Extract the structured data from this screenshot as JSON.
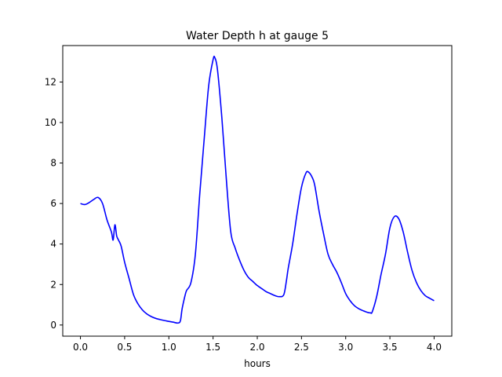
{
  "chart_data": {
    "type": "line",
    "title": "Water Depth h at gauge 5",
    "xlabel": "hours",
    "ylabel": "",
    "xlim": [
      -0.2,
      4.2
    ],
    "ylim": [
      -0.55,
      13.8
    ],
    "xticks": [
      0.0,
      0.5,
      1.0,
      1.5,
      2.0,
      2.5,
      3.0,
      3.5,
      4.0
    ],
    "xtick_labels": [
      "0.0",
      "0.5",
      "1.0",
      "1.5",
      "2.0",
      "2.5",
      "3.0",
      "3.5",
      "4.0"
    ],
    "yticks": [
      0,
      2,
      4,
      6,
      8,
      10,
      12
    ],
    "ytick_labels": [
      "0",
      "2",
      "4",
      "6",
      "8",
      "10",
      "12"
    ],
    "grid": false,
    "series": [
      {
        "color": "#0000ff",
        "x": [
          0.0,
          0.05,
          0.1,
          0.15,
          0.2,
          0.25,
          0.3,
          0.35,
          0.37,
          0.39,
          0.41,
          0.43,
          0.46,
          0.5,
          0.55,
          0.6,
          0.65,
          0.7,
          0.75,
          0.8,
          0.85,
          0.9,
          0.95,
          1.0,
          1.05,
          1.1,
          1.13,
          1.15,
          1.18,
          1.2,
          1.25,
          1.3,
          1.35,
          1.4,
          1.45,
          1.5,
          1.52,
          1.55,
          1.6,
          1.65,
          1.7,
          1.75,
          1.8,
          1.85,
          1.9,
          1.95,
          2.0,
          2.05,
          2.1,
          2.15,
          2.2,
          2.25,
          2.3,
          2.33,
          2.35,
          2.4,
          2.45,
          2.5,
          2.55,
          2.58,
          2.62,
          2.65,
          2.7,
          2.75,
          2.8,
          2.85,
          2.9,
          2.95,
          3.0,
          3.05,
          3.1,
          3.15,
          3.2,
          3.25,
          3.28,
          3.3,
          3.35,
          3.4,
          3.45,
          3.5,
          3.55,
          3.6,
          3.65,
          3.7,
          3.75,
          3.8,
          3.85,
          3.9,
          3.95,
          4.0
        ],
        "y": [
          6.0,
          5.95,
          6.05,
          6.2,
          6.3,
          6.0,
          5.2,
          4.6,
          4.2,
          4.95,
          4.4,
          4.2,
          3.9,
          3.1,
          2.3,
          1.5,
          1.05,
          0.75,
          0.55,
          0.42,
          0.33,
          0.27,
          0.22,
          0.18,
          0.14,
          0.1,
          0.2,
          0.8,
          1.4,
          1.7,
          2.1,
          3.5,
          6.5,
          9.2,
          11.8,
          13.1,
          13.2,
          12.6,
          10.2,
          7.2,
          4.6,
          3.8,
          3.2,
          2.7,
          2.35,
          2.15,
          1.95,
          1.8,
          1.65,
          1.55,
          1.45,
          1.4,
          1.5,
          2.2,
          2.8,
          4.0,
          5.5,
          6.8,
          7.5,
          7.55,
          7.3,
          6.9,
          5.6,
          4.5,
          3.5,
          3.0,
          2.6,
          2.1,
          1.55,
          1.2,
          0.95,
          0.8,
          0.7,
          0.62,
          0.6,
          0.65,
          1.4,
          2.5,
          3.5,
          4.8,
          5.35,
          5.25,
          4.6,
          3.6,
          2.7,
          2.1,
          1.7,
          1.45,
          1.32,
          1.2
        ]
      }
    ]
  }
}
